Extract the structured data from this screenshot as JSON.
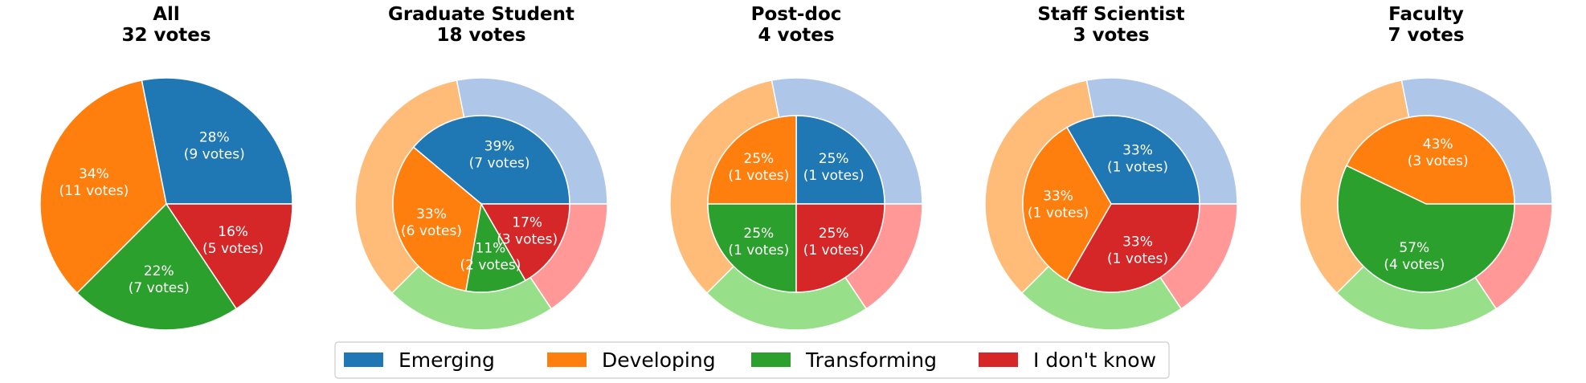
{
  "chart_data": {
    "type": "pie",
    "categories": [
      "Emerging",
      "Developing",
      "Transforming",
      "I don't know"
    ],
    "colors": [
      "#1f77b4",
      "#ff7f0e",
      "#2ca02c",
      "#d62728"
    ],
    "outer_ring_colors": [
      "#aec7e8",
      "#ffbb78",
      "#98df8a",
      "#ff9896"
    ],
    "legend": {
      "placement": "bottom-center",
      "entries": [
        "Emerging",
        "Developing",
        "Transforming",
        "I don't know"
      ]
    },
    "pies": [
      {
        "title_line1": "All",
        "title_line2": "32 votes",
        "values": [
          9,
          11,
          7,
          5
        ],
        "labels": [
          "28%\n(9 votes)",
          "34%\n(11 votes)",
          "22%\n(7 votes)",
          "16%\n(5 votes)"
        ],
        "overall_ring": []
      },
      {
        "title_line1": "Graduate Student",
        "title_line2": "18 votes",
        "values": [
          7,
          6,
          2,
          3
        ],
        "labels": [
          "39%\n(7 votes)",
          "33%\n(6 votes)",
          "11%\n(2 votes)",
          "17%\n(3 votes)"
        ],
        "overall_ring": [
          9,
          11,
          7,
          5
        ]
      },
      {
        "title_line1": "Post-doc",
        "title_line2": "4 votes",
        "values": [
          1,
          1,
          1,
          1
        ],
        "labels": [
          "25%\n(1 votes)",
          "25%\n(1 votes)",
          "25%\n(1 votes)",
          "25%\n(1 votes)"
        ],
        "overall_ring": [
          9,
          11,
          7,
          5
        ]
      },
      {
        "title_line1": "Staff Scientist",
        "title_line2": "3 votes",
        "values": [
          1,
          1,
          0,
          1
        ],
        "labels": [
          "33%\n(1 votes)",
          "33%\n(1 votes)",
          "",
          "33%\n(1 votes)"
        ],
        "overall_ring": [
          9,
          11,
          7,
          5
        ]
      },
      {
        "title_line1": "Faculty",
        "title_line2": "7 votes",
        "values": [
          0,
          3,
          4,
          0
        ],
        "labels": [
          "",
          "43%\n(3 votes)",
          "57%\n(4 votes)",
          ""
        ],
        "overall_ring": [
          9,
          11,
          7,
          5
        ]
      }
    ]
  }
}
